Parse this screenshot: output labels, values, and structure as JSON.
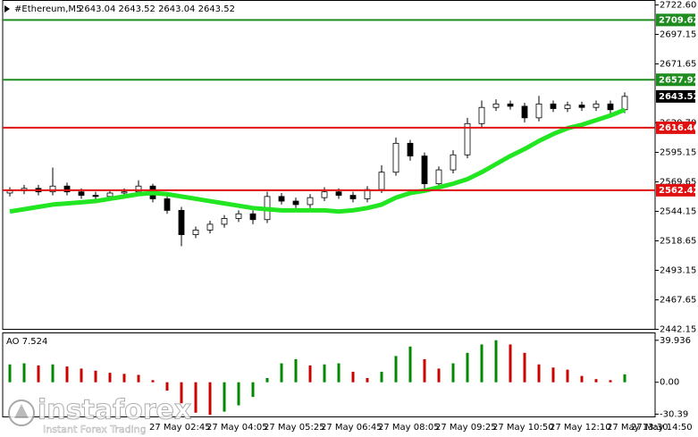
{
  "chart_data": [
    {
      "type": "candlestick",
      "symbol": "#Ethereum,M5",
      "ohlc_text": "2643.04 2643.52 2643.04 2643.52",
      "categories": [
        null,
        null,
        null,
        null,
        null,
        null,
        null,
        null,
        null,
        null,
        "27 May 02:45",
        null,
        null,
        null,
        "27 May 04:05",
        null,
        null,
        null,
        "27 May 05:25",
        null,
        null,
        null,
        "27 May 06:45",
        null,
        null,
        null,
        "27 May 08:05",
        null,
        null,
        null,
        "27 May 09:25",
        null,
        null,
        null,
        "27 May 10:50",
        null,
        null,
        null,
        "27 May 12:10",
        null,
        null,
        null,
        "27 May 13:30",
        null
      ],
      "x_end_label": "27 May 14:50",
      "open": [
        2560,
        2562,
        2564,
        2561,
        2566,
        2561,
        2558,
        2557,
        2560,
        2561,
        2566,
        2555,
        2545,
        2524,
        2528,
        2533,
        2538,
        2542,
        2537,
        2557,
        2553,
        2550,
        2556,
        2561,
        2558,
        2555,
        2563,
        2578,
        2603,
        2592,
        2568,
        2580,
        2593,
        2620,
        2634,
        2637,
        2635,
        2625,
        2637,
        2633,
        2636,
        2634,
        2637,
        2632
      ],
      "high": [
        2565,
        2567,
        2567,
        2582,
        2569,
        2564,
        2561,
        2563,
        2564,
        2571,
        2568,
        2558,
        2548,
        2531,
        2536,
        2541,
        2545,
        2545,
        2561,
        2560,
        2556,
        2559,
        2565,
        2564,
        2561,
        2566,
        2584,
        2608,
        2606,
        2595,
        2583,
        2597,
        2625,
        2640,
        2641,
        2640,
        2638,
        2644,
        2640,
        2639,
        2639,
        2640,
        2640,
        2647
      ],
      "low": [
        2557,
        2559,
        2558,
        2558,
        2558,
        2555,
        2554,
        2554,
        2557,
        2558,
        2552,
        2542,
        2514,
        2521,
        2525,
        2530,
        2535,
        2533,
        2534,
        2550,
        2547,
        2547,
        2553,
        2555,
        2552,
        2552,
        2560,
        2575,
        2588,
        2562,
        2565,
        2577,
        2590,
        2617,
        2631,
        2632,
        2621,
        2622,
        2630,
        2630,
        2631,
        2631,
        2628,
        2629
      ],
      "close": [
        2562,
        2564,
        2561,
        2566,
        2561,
        2558,
        2557,
        2560,
        2561,
        2566,
        2555,
        2545,
        2524,
        2528,
        2533,
        2538,
        2542,
        2537,
        2557,
        2553,
        2550,
        2556,
        2561,
        2558,
        2555,
        2563,
        2578,
        2603,
        2592,
        2568,
        2580,
        2593,
        2620,
        2634,
        2637,
        2635,
        2625,
        2637,
        2633,
        2636,
        2634,
        2637,
        2632,
        2643.52
      ],
      "up_color": "#ffffff",
      "down_color": "#000000",
      "ma": {
        "color": "#22e622",
        "values": [
          2544,
          2546,
          2548,
          2550,
          2551,
          2552,
          2553,
          2555,
          2557,
          2559,
          2560,
          2559,
          2557,
          2555,
          2553,
          2551,
          2549,
          2547,
          2546,
          2545,
          2545,
          2545,
          2545,
          2544,
          2545,
          2547,
          2550,
          2556,
          2560,
          2562,
          2565,
          2568,
          2572,
          2578,
          2585,
          2592,
          2598,
          2605,
          2611,
          2616,
          2619,
          2623,
          2627,
          2632
        ]
      },
      "levels": [
        {
          "value": 2709.62,
          "color": "#1e8c1e"
        },
        {
          "value": 2657.92,
          "color": "#1e8c1e"
        },
        {
          "value": 2616.46,
          "color": "#e01010"
        },
        {
          "value": 2562.42,
          "color": "#e01010"
        }
      ],
      "last_price": 2643.52,
      "ylim": [
        2442.15,
        2726.5
      ],
      "yticks": [
        {
          "value": 2722.6,
          "label": "2722.60"
        },
        2697.15,
        2671.65,
        {
          "value": 2620.7,
          "label": "2620.70"
        },
        2595.15,
        2569.65,
        2544.15,
        2518.65,
        2493.15,
        2467.65,
        2442.15
      ]
    },
    {
      "type": "bar",
      "title": "AO 7.524",
      "values": [
        17,
        18,
        16,
        17,
        15,
        13,
        11,
        9,
        8,
        7,
        2,
        -8,
        -20,
        -29,
        -31,
        -28,
        -22,
        -14,
        4,
        18,
        22,
        16,
        17,
        18,
        10,
        4,
        10,
        25,
        34,
        22,
        13,
        18,
        28,
        36,
        40,
        36,
        28,
        17,
        14,
        12,
        6,
        3,
        2,
        7.524
      ],
      "up_color": "#008a00",
      "down_color": "#cc0000",
      "ylim": [
        -33,
        47
      ],
      "yticks": [
        39.936,
        {
          "value": 0,
          "label": "0.00"
        },
        -30.39
      ]
    }
  ],
  "watermark": {
    "brand": "instaforex",
    "tagline": "Instant Forex Trading"
  }
}
